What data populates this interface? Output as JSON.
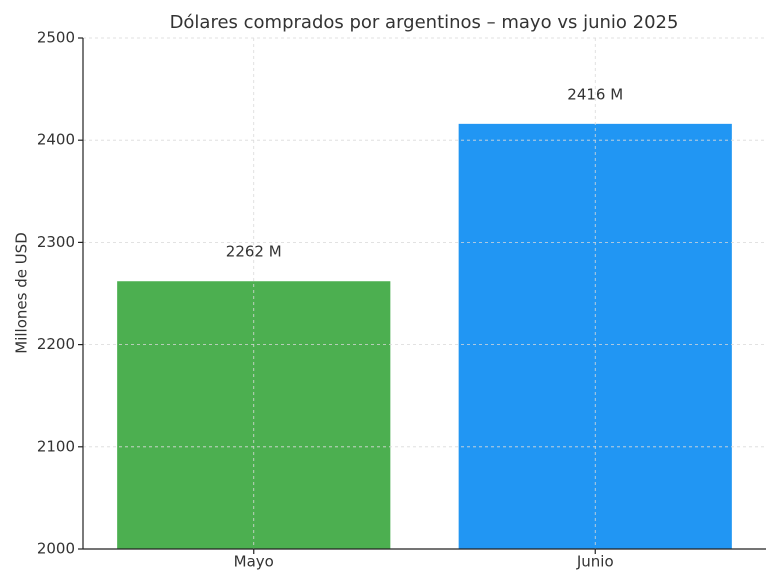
{
  "chart_data": {
    "type": "bar",
    "title": "Dólares comprados por argentinos – mayo vs junio 2025",
    "y_label": "Millones de USD",
    "categories": [
      "Mayo",
      "Junio"
    ],
    "values": [
      2262,
      2416
    ],
    "value_labels": [
      "2262 M",
      "2416 M"
    ],
    "colors": [
      "#4caf50",
      "#2196f3"
    ],
    "ylim": [
      2000,
      2500
    ],
    "yticks": [
      2000,
      2100,
      2200,
      2300,
      2400,
      2500
    ],
    "grid": true
  }
}
